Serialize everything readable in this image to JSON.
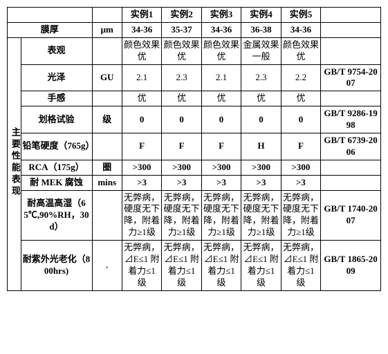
{
  "headers": {
    "ex1": "实例1",
    "ex2": "实例2",
    "ex3": "实例3",
    "ex4": "实例4",
    "ex5": "实例5"
  },
  "sideLabel": "主要性能表现",
  "film": {
    "prop": "膜厚",
    "unit": "μm",
    "v1": "34-36",
    "v2": "35-37",
    "v3": "34-36",
    "v4": "36-38",
    "v5": "34-36",
    "std": ""
  },
  "appearance": {
    "prop": "表观",
    "unit": "",
    "v1": "颜色效果优",
    "v2": "颜色效果优",
    "v3": "颜色效果优",
    "v4": "金属效果一般",
    "v5": "颜色效果优",
    "std": ""
  },
  "gloss": {
    "prop": "光泽",
    "unit": "GU",
    "v1": "2.1",
    "v2": "2.3",
    "v3": "2.1",
    "v4": "2.3",
    "v5": "2.2",
    "std": "GB/T 9754-2007"
  },
  "feel": {
    "prop": "手感",
    "unit": "",
    "v1": "优",
    "v2": "优",
    "v3": "优",
    "v4": "优",
    "v5": "优",
    "std": ""
  },
  "crosscut": {
    "prop": "划格试验",
    "unit": "级",
    "v1": "0",
    "v2": "0",
    "v3": "0",
    "v4": "0",
    "v5": "0",
    "std": "GB/T 9286-1998"
  },
  "pencil": {
    "prop": "铅笔硬度（765g）",
    "unit": "",
    "v1": "F",
    "v2": "F",
    "v3": "F",
    "v4": "H",
    "v5": "F",
    "std": "GB/T 6739-2006"
  },
  "rca": {
    "prop": "RCA（175g）",
    "unit": "圈",
    "v1": ">300",
    "v2": ">300",
    "v3": ">300",
    "v4": ">300",
    "v5": ">300",
    "std": ""
  },
  "mek": {
    "prop": "耐 MEK 腐蚀",
    "unit": "mins",
    "v1": ">3",
    "v2": ">3",
    "v3": ">3",
    "v4": ">3",
    "v5": ">3",
    "std": ""
  },
  "heatHumid": {
    "prop": "耐高温高湿（65℃,90%RH，30d）",
    "unit": "",
    "v1": "无弊病，硬度无下降，附着力≥1级",
    "v2": "无弊病，硬度无下降，附着力≥1级",
    "v3": "无弊病，硬度无下降，附着力≥1级",
    "v4": "无弊病，硬度无下降，附着力≥1级",
    "v5": "无弊病，硬度无下降，附着力≥1级",
    "std": "GB/T 1740-2007"
  },
  "uv": {
    "prop": "耐紫外光老化（800hrs)",
    "unit": ",",
    "v1": "无弊病，⊿E≤1 附着力≤1级",
    "v2": "无弊病，⊿E≤1 附着力≤1级",
    "v3": "无弊病，⊿E≤1 附着力≤1级",
    "v4": "无弊病，⊿E≤1 附着力≤1级",
    "v5": "无弊病，⊿E≤1 附着力≤1级",
    "std": "GB/T 1865-2009"
  }
}
